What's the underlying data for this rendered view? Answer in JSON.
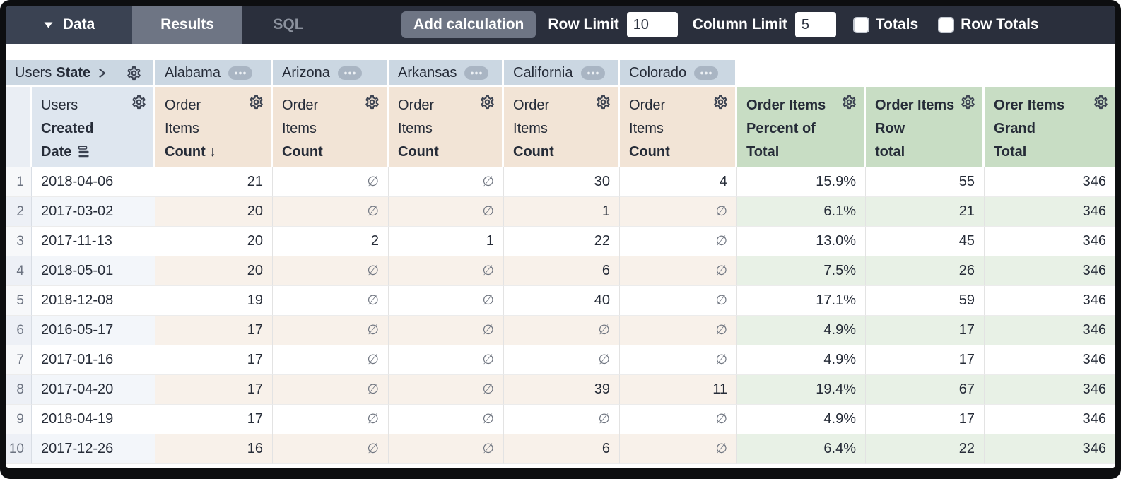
{
  "topbar": {
    "data_tab": "Data",
    "results_tab": "Results",
    "sql_tab": "SQL",
    "add_calculation": "Add calculation",
    "row_limit_label": "Row Limit",
    "row_limit_value": "10",
    "column_limit_label": "Column Limit",
    "column_limit_value": "5",
    "totals_label": "Totals",
    "totals_checked": false,
    "row_totals_label": "Row Totals",
    "row_totals_checked": false
  },
  "colors": {
    "frame_bg": "#0d0e10",
    "topbar_bg": "#2a2f3c",
    "tab_dark_bg": "#3a4252",
    "tab_gray_bg": "#6e7584",
    "sql_text": "#8b919d",
    "state_header_bg": "#cbd7e2",
    "dim_header_bg": "#dee6ef",
    "rownum_header_bg": "#eaeef4",
    "measure_header_bg": "#f2e4d6",
    "calc_header_bg": "#c8ddc4",
    "row_even_dim": "#f3f6fa",
    "row_even_num": "#edf0f6",
    "row_even_measure": "#f8f1ea",
    "row_even_calc": "#e8f1e6",
    "text_dark": "#262c38",
    "text_gray": "#6b7280",
    "null_gray": "#6f7580",
    "icon_color": "#3a4150"
  },
  "table": {
    "null_symbol": "∅",
    "pivot": {
      "view": "Users",
      "field": "State",
      "values": [
        "Alabama",
        "Arizona",
        "Arkansas",
        "California",
        "Colorado"
      ]
    },
    "dimension_header": {
      "lines": [
        "Users",
        "Created",
        "Date"
      ],
      "bold": [
        false,
        true,
        true
      ]
    },
    "measure_header": {
      "lines": [
        "Order",
        "Items",
        "Count"
      ],
      "bold": [
        false,
        false,
        true
      ]
    },
    "sorted_measure_index": 0,
    "sort_arrow": "↓",
    "calc_headers": [
      {
        "lines": [
          "Order Items",
          "Percent of",
          "Total"
        ],
        "bold": [
          true,
          true,
          true
        ]
      },
      {
        "lines": [
          "Order Items",
          "Row",
          "total"
        ],
        "bold": [
          true,
          true,
          true
        ]
      },
      {
        "lines": [
          "Orer Items",
          "Grand",
          "Total"
        ],
        "bold": [
          true,
          true,
          true
        ]
      }
    ],
    "rows": [
      {
        "n": "1",
        "date": "2018-04-06",
        "measures": [
          "21",
          null,
          null,
          "30",
          "4"
        ],
        "calcs": [
          "15.9%",
          "55",
          "346"
        ]
      },
      {
        "n": "2",
        "date": "2017-03-02",
        "measures": [
          "20",
          null,
          null,
          "1",
          null
        ],
        "calcs": [
          "6.1%",
          "21",
          "346"
        ]
      },
      {
        "n": "3",
        "date": "2017-11-13",
        "measures": [
          "20",
          "2",
          "1",
          "22",
          null
        ],
        "calcs": [
          "13.0%",
          "45",
          "346"
        ]
      },
      {
        "n": "4",
        "date": "2018-05-01",
        "measures": [
          "20",
          null,
          null,
          "6",
          null
        ],
        "calcs": [
          "7.5%",
          "26",
          "346"
        ]
      },
      {
        "n": "5",
        "date": "2018-12-08",
        "measures": [
          "19",
          null,
          null,
          "40",
          null
        ],
        "calcs": [
          "17.1%",
          "59",
          "346"
        ]
      },
      {
        "n": "6",
        "date": "2016-05-17",
        "measures": [
          "17",
          null,
          null,
          null,
          null
        ],
        "calcs": [
          "4.9%",
          "17",
          "346"
        ]
      },
      {
        "n": "7",
        "date": "2017-01-16",
        "measures": [
          "17",
          null,
          null,
          null,
          null
        ],
        "calcs": [
          "4.9%",
          "17",
          "346"
        ]
      },
      {
        "n": "8",
        "date": "2017-04-20",
        "measures": [
          "17",
          null,
          null,
          "39",
          "11"
        ],
        "calcs": [
          "19.4%",
          "67",
          "346"
        ]
      },
      {
        "n": "9",
        "date": "2018-04-19",
        "measures": [
          "17",
          null,
          null,
          null,
          null
        ],
        "calcs": [
          "4.9%",
          "17",
          "346"
        ]
      },
      {
        "n": "10",
        "date": "2017-12-26",
        "measures": [
          "16",
          null,
          null,
          "6",
          null
        ],
        "calcs": [
          "6.4%",
          "22",
          "346"
        ]
      }
    ]
  }
}
